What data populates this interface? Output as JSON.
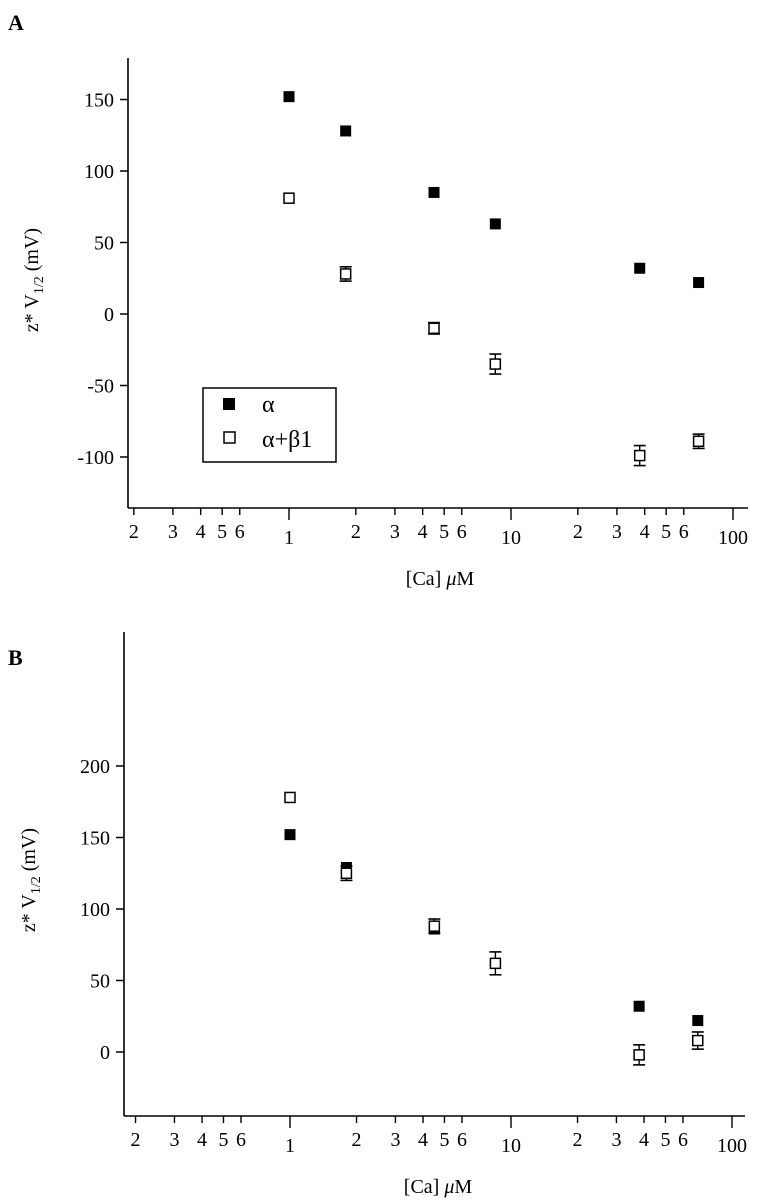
{
  "chart_data": [
    {
      "panel": "A",
      "type": "scatter",
      "xscale": "log",
      "xlim": [
        0.15,
        110
      ],
      "ylim": [
        -135,
        178
      ],
      "xlabel": "[Ca] μM",
      "ylabel": "z* V1/2 (mV)",
      "xtick_labels": [
        {
          "value": 0.2,
          "label": "2"
        },
        {
          "value": 0.3,
          "label": "3"
        },
        {
          "value": 0.4,
          "label": "4"
        },
        {
          "value": 0.5,
          "label": "5"
        },
        {
          "value": 0.6,
          "label": "6"
        },
        {
          "value": 1,
          "label": "1"
        },
        {
          "value": 2,
          "label": "2"
        },
        {
          "value": 3,
          "label": "3"
        },
        {
          "value": 4,
          "label": "4"
        },
        {
          "value": 5,
          "label": "5"
        },
        {
          "value": 6,
          "label": "6"
        },
        {
          "value": 10,
          "label": "10"
        },
        {
          "value": 20,
          "label": "2"
        },
        {
          "value": 30,
          "label": "3"
        },
        {
          "value": 40,
          "label": "4"
        },
        {
          "value": 50,
          "label": "5"
        },
        {
          "value": 60,
          "label": "6"
        },
        {
          "value": 100,
          "label": "100"
        }
      ],
      "ytick_labels": [
        {
          "value": 150,
          "label": "150"
        },
        {
          "value": 100,
          "label": "100"
        },
        {
          "value": 50,
          "label": "50"
        },
        {
          "value": 0,
          "label": "0"
        },
        {
          "value": -50,
          "label": "-50"
        },
        {
          "value": -100,
          "label": "-100"
        }
      ],
      "legend": {
        "placement": "lower-left",
        "entries": [
          "α",
          "α+β1"
        ]
      },
      "series": [
        {
          "name": "α",
          "marker": "filled-square",
          "points": [
            {
              "x": 1.0,
              "y": 152,
              "err": 0
            },
            {
              "x": 1.8,
              "y": 128,
              "err": 0
            },
            {
              "x": 4.5,
              "y": 85,
              "err": 0
            },
            {
              "x": 8.5,
              "y": 63,
              "err": 0
            },
            {
              "x": 38,
              "y": 32,
              "err": 0
            },
            {
              "x": 70,
              "y": 22,
              "err": 0
            }
          ]
        },
        {
          "name": "α+β1",
          "marker": "open-square",
          "points": [
            {
              "x": 1.0,
              "y": 81,
              "err": 0
            },
            {
              "x": 1.8,
              "y": 28,
              "err": 5
            },
            {
              "x": 4.5,
              "y": -10,
              "err": 4
            },
            {
              "x": 8.5,
              "y": -35,
              "err": 7
            },
            {
              "x": 38,
              "y": -99,
              "err": 7
            },
            {
              "x": 70,
              "y": -89,
              "err": 5
            }
          ]
        }
      ]
    },
    {
      "panel": "B",
      "type": "scatter",
      "xscale": "log",
      "xlim": [
        0.15,
        110
      ],
      "ylim": [
        -38,
        222
      ],
      "xlabel": "[Ca] μM",
      "ylabel": "z* V1/2 (mV)",
      "xtick_labels": [
        {
          "value": 0.2,
          "label": "2"
        },
        {
          "value": 0.3,
          "label": "3"
        },
        {
          "value": 0.4,
          "label": "4"
        },
        {
          "value": 0.5,
          "label": "5"
        },
        {
          "value": 0.6,
          "label": "6"
        },
        {
          "value": 1,
          "label": "1"
        },
        {
          "value": 2,
          "label": "2"
        },
        {
          "value": 3,
          "label": "3"
        },
        {
          "value": 4,
          "label": "4"
        },
        {
          "value": 5,
          "label": "5"
        },
        {
          "value": 6,
          "label": "6"
        },
        {
          "value": 10,
          "label": "10"
        },
        {
          "value": 20,
          "label": "2"
        },
        {
          "value": 30,
          "label": "3"
        },
        {
          "value": 40,
          "label": "4"
        },
        {
          "value": 50,
          "label": "5"
        },
        {
          "value": 60,
          "label": "6"
        },
        {
          "value": 100,
          "label": "100"
        }
      ],
      "ytick_labels": [
        {
          "value": 200,
          "label": "200"
        },
        {
          "value": 150,
          "label": "150"
        },
        {
          "value": 100,
          "label": "100"
        },
        {
          "value": 50,
          "label": "50"
        },
        {
          "value": 0,
          "label": "0"
        }
      ],
      "series": [
        {
          "name": "α",
          "marker": "filled-square",
          "points": [
            {
              "x": 1.0,
              "y": 152,
              "err": 0
            },
            {
              "x": 1.8,
              "y": 129,
              "err": 0
            },
            {
              "x": 4.5,
              "y": 86,
              "err": 0
            },
            {
              "x": 38,
              "y": 32,
              "err": 0
            },
            {
              "x": 70,
              "y": 22,
              "err": 0
            }
          ]
        },
        {
          "name": "α+β1",
          "marker": "open-square",
          "points": [
            {
              "x": 1.0,
              "y": 178,
              "err": 0
            },
            {
              "x": 1.8,
              "y": 125,
              "err": 5
            },
            {
              "x": 4.5,
              "y": 88,
              "err": 5
            },
            {
              "x": 8.5,
              "y": 62,
              "err": 8
            },
            {
              "x": 38,
              "y": -2,
              "err": 7
            },
            {
              "x": 70,
              "y": 8,
              "err": 6
            }
          ]
        }
      ]
    }
  ],
  "figure": {
    "panel_labels": [
      "A",
      "B"
    ],
    "colors": {
      "ink": "#000000",
      "background": "#ffffff"
    }
  }
}
